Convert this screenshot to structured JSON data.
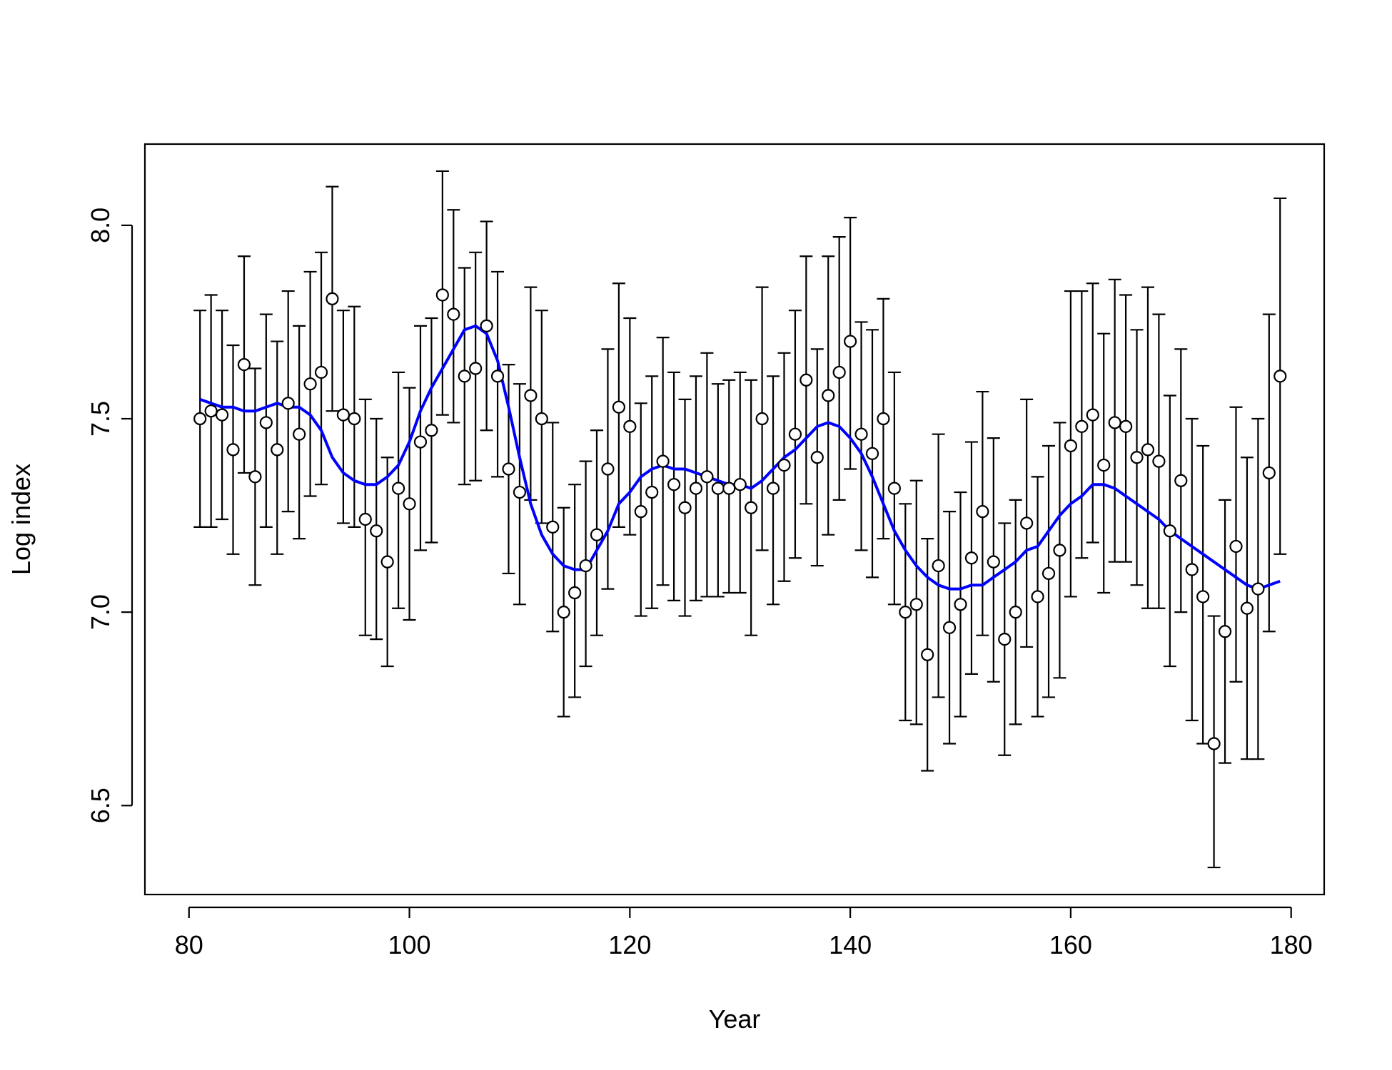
{
  "chart_data": {
    "type": "scatter",
    "title": "",
    "xlabel": "Year",
    "ylabel": "Log index",
    "xlim": [
      76,
      183
    ],
    "ylim": [
      6.27,
      8.21
    ],
    "x_ticks": [
      80,
      100,
      120,
      140,
      160,
      180
    ],
    "y_ticks": [
      6.5,
      7.0,
      7.5,
      8.0
    ],
    "x_tick_labels": [
      "80",
      "100",
      "120",
      "140",
      "160",
      "180"
    ],
    "y_tick_labels": [
      "6.5",
      "7.0",
      "7.5",
      "8.0"
    ],
    "grid": false,
    "legend": "none",
    "colors": {
      "points": "#000000",
      "error_bars": "#000000",
      "smooth_line": "#0000ff"
    },
    "points": {
      "x": [
        81,
        82,
        83,
        84,
        85,
        86,
        87,
        88,
        89,
        90,
        91,
        92,
        93,
        94,
        95,
        96,
        97,
        98,
        99,
        100,
        101,
        102,
        103,
        104,
        105,
        106,
        107,
        108,
        109,
        110,
        111,
        112,
        113,
        114,
        115,
        116,
        117,
        118,
        119,
        120,
        121,
        122,
        123,
        124,
        125,
        126,
        127,
        128,
        129,
        130,
        131,
        132,
        133,
        134,
        135,
        136,
        137,
        138,
        139,
        140,
        141,
        142,
        143,
        144,
        145,
        146,
        147,
        148,
        149,
        150,
        151,
        152,
        153,
        154,
        155,
        156,
        157,
        158,
        159,
        160,
        161,
        162,
        163,
        164,
        165,
        166,
        167,
        168,
        169,
        170,
        171,
        172,
        173,
        174,
        175,
        176,
        177,
        178,
        179
      ],
      "y": [
        7.5,
        7.52,
        7.51,
        7.42,
        7.64,
        7.35,
        7.49,
        7.42,
        7.54,
        7.46,
        7.59,
        7.62,
        7.81,
        7.51,
        7.5,
        7.24,
        7.21,
        7.13,
        7.32,
        7.28,
        7.44,
        7.47,
        7.82,
        7.77,
        7.61,
        7.63,
        7.74,
        7.61,
        7.37,
        7.31,
        7.56,
        7.5,
        7.22,
        7.0,
        7.05,
        7.12,
        7.2,
        7.37,
        7.53,
        7.48,
        7.26,
        7.31,
        7.39,
        7.33,
        7.27,
        7.32,
        7.35,
        7.32,
        7.32,
        7.33,
        7.27,
        7.5,
        7.32,
        7.38,
        7.46,
        7.6,
        7.4,
        7.56,
        7.62,
        7.7,
        7.46,
        7.41,
        7.5,
        7.32,
        7.0,
        7.02,
        6.89,
        7.12,
        6.96,
        7.02,
        7.14,
        7.26,
        7.13,
        6.93,
        7.0,
        7.23,
        7.04,
        7.1,
        7.16,
        7.43,
        7.48,
        7.51,
        7.38,
        7.49,
        7.48,
        7.4,
        7.42,
        7.39,
        7.21,
        7.34,
        7.11,
        7.04,
        6.66,
        6.95,
        7.17,
        7.01,
        7.06,
        7.36,
        7.61
      ],
      "lower": [
        7.22,
        7.22,
        7.24,
        7.15,
        7.36,
        7.07,
        7.22,
        7.15,
        7.26,
        7.19,
        7.3,
        7.33,
        7.52,
        7.23,
        7.22,
        6.94,
        6.93,
        6.86,
        7.01,
        6.98,
        7.16,
        7.18,
        7.51,
        7.49,
        7.33,
        7.34,
        7.47,
        7.35,
        7.1,
        7.02,
        7.29,
        7.23,
        6.95,
        6.73,
        6.78,
        6.86,
        6.94,
        7.06,
        7.22,
        7.2,
        6.99,
        7.01,
        7.07,
        7.03,
        6.99,
        7.03,
        7.04,
        7.04,
        7.05,
        7.05,
        6.94,
        7.16,
        7.02,
        7.08,
        7.14,
        7.28,
        7.12,
        7.2,
        7.29,
        7.37,
        7.16,
        7.09,
        7.19,
        7.02,
        6.72,
        6.71,
        6.59,
        6.78,
        6.66,
        6.73,
        6.84,
        6.94,
        6.82,
        6.63,
        6.71,
        6.91,
        6.73,
        6.78,
        6.83,
        7.04,
        7.14,
        7.18,
        7.05,
        7.13,
        7.13,
        7.07,
        7.01,
        7.01,
        6.86,
        7.0,
        6.72,
        6.66,
        6.34,
        6.61,
        6.82,
        6.62,
        6.62,
        6.95,
        7.15
      ],
      "upper": [
        7.78,
        7.82,
        7.78,
        7.69,
        7.92,
        7.63,
        7.77,
        7.7,
        7.83,
        7.74,
        7.88,
        7.93,
        8.1,
        7.78,
        7.79,
        7.55,
        7.5,
        7.4,
        7.62,
        7.58,
        7.74,
        7.76,
        8.14,
        8.04,
        7.89,
        7.93,
        8.01,
        7.88,
        7.64,
        7.59,
        7.84,
        7.78,
        7.49,
        7.27,
        7.33,
        7.39,
        7.47,
        7.68,
        7.85,
        7.76,
        7.54,
        7.61,
        7.71,
        7.62,
        7.55,
        7.61,
        7.67,
        7.59,
        7.6,
        7.62,
        7.6,
        7.84,
        7.61,
        7.67,
        7.78,
        7.92,
        7.68,
        7.92,
        7.97,
        8.02,
        7.75,
        7.73,
        7.81,
        7.62,
        7.28,
        7.34,
        7.19,
        7.46,
        7.26,
        7.31,
        7.44,
        7.57,
        7.45,
        7.23,
        7.29,
        7.55,
        7.35,
        7.43,
        7.49,
        7.83,
        7.83,
        7.85,
        7.72,
        7.86,
        7.82,
        7.73,
        7.84,
        7.77,
        7.56,
        7.68,
        7.5,
        7.43,
        6.99,
        7.29,
        7.53,
        7.4,
        7.5,
        7.77,
        8.07
      ]
    },
    "smooth_line": {
      "x": [
        81,
        82,
        83,
        84,
        85,
        86,
        87,
        88,
        89,
        90,
        91,
        92,
        93,
        94,
        95,
        96,
        97,
        98,
        99,
        100,
        101,
        102,
        103,
        104,
        105,
        106,
        107,
        108,
        109,
        110,
        111,
        112,
        113,
        114,
        115,
        116,
        117,
        118,
        119,
        120,
        121,
        122,
        123,
        124,
        125,
        126,
        127,
        128,
        129,
        130,
        131,
        132,
        133,
        134,
        135,
        136,
        137,
        138,
        139,
        140,
        141,
        142,
        143,
        144,
        145,
        146,
        147,
        148,
        149,
        150,
        151,
        152,
        153,
        154,
        155,
        156,
        157,
        158,
        159,
        160,
        161,
        162,
        163,
        164,
        165,
        166,
        167,
        168,
        169,
        170,
        171,
        172,
        173,
        174,
        175,
        176,
        177,
        178,
        179
      ],
      "y": [
        7.55,
        7.54,
        7.53,
        7.53,
        7.52,
        7.52,
        7.53,
        7.54,
        7.53,
        7.53,
        7.51,
        7.47,
        7.4,
        7.36,
        7.34,
        7.33,
        7.33,
        7.35,
        7.38,
        7.44,
        7.52,
        7.58,
        7.63,
        7.68,
        7.73,
        7.74,
        7.72,
        7.65,
        7.53,
        7.4,
        7.28,
        7.2,
        7.15,
        7.12,
        7.11,
        7.11,
        7.16,
        7.21,
        7.28,
        7.31,
        7.35,
        7.37,
        7.38,
        7.37,
        7.37,
        7.36,
        7.35,
        7.34,
        7.33,
        7.33,
        7.32,
        7.34,
        7.37,
        7.4,
        7.42,
        7.45,
        7.48,
        7.49,
        7.48,
        7.45,
        7.41,
        7.35,
        7.28,
        7.21,
        7.16,
        7.12,
        7.09,
        7.07,
        7.06,
        7.06,
        7.07,
        7.07,
        7.09,
        7.11,
        7.13,
        7.16,
        7.17,
        7.21,
        7.25,
        7.28,
        7.3,
        7.33,
        7.33,
        7.32,
        7.3,
        7.28,
        7.26,
        7.24,
        7.21,
        7.19,
        7.17,
        7.15,
        7.13,
        7.11,
        7.09,
        7.07,
        7.06,
        7.07,
        7.08
      ]
    }
  }
}
